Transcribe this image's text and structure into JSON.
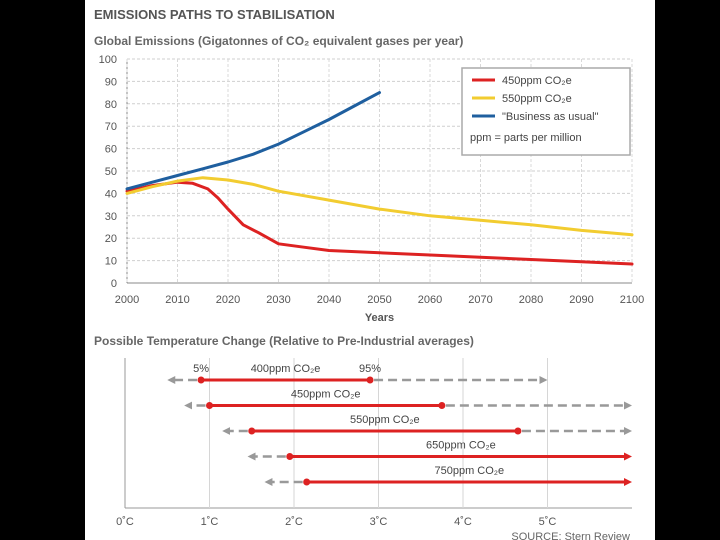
{
  "chart_data": [
    {
      "type": "line",
      "title": "EMISSIONS PATHS TO STABILISATION",
      "subtitle": "Global Emissions (Gigatonnes of CO₂ equivalent gases per year)",
      "xlabel": "Years",
      "ylabel": "",
      "xlim": [
        2000,
        2100
      ],
      "ylim": [
        0,
        100
      ],
      "xticks": [
        2000,
        2010,
        2020,
        2030,
        2040,
        2050,
        2060,
        2070,
        2080,
        2090,
        2100
      ],
      "yticks": [
        0,
        10,
        20,
        30,
        40,
        50,
        60,
        70,
        80,
        90,
        100
      ],
      "grid": true,
      "legend_position": "top-right",
      "legend_note": "ppm = parts per million",
      "series": [
        {
          "name": "450ppm CO₂e",
          "color": "#dd2222",
          "points": [
            [
              2000,
              41
            ],
            [
              2005,
              43.5
            ],
            [
              2010,
              45
            ],
            [
              2013,
              44.5
            ],
            [
              2016,
              42
            ],
            [
              2018,
              38
            ],
            [
              2020,
              33
            ],
            [
              2023,
              26
            ],
            [
              2026,
              22.5
            ],
            [
              2030,
              17.5
            ],
            [
              2035,
              16
            ],
            [
              2040,
              14.5
            ],
            [
              2050,
              13.5
            ],
            [
              2060,
              12.5
            ],
            [
              2070,
              11.5
            ],
            [
              2080,
              10.5
            ],
            [
              2090,
              9.5
            ],
            [
              2100,
              8.5
            ]
          ]
        },
        {
          "name": "550ppm CO₂e",
          "color": "#f2cc30",
          "points": [
            [
              2000,
              40
            ],
            [
              2005,
              43
            ],
            [
              2010,
              45.5
            ],
            [
              2015,
              47
            ],
            [
              2020,
              46
            ],
            [
              2025,
              44
            ],
            [
              2030,
              41
            ],
            [
              2040,
              37
            ],
            [
              2050,
              33
            ],
            [
              2060,
              30
            ],
            [
              2070,
              28
            ],
            [
              2080,
              26
            ],
            [
              2090,
              23.5
            ],
            [
              2100,
              21.5
            ]
          ]
        },
        {
          "name": "\"Business as usual\"",
          "color": "#1f5f9f",
          "points": [
            [
              2000,
              42
            ],
            [
              2005,
              45
            ],
            [
              2010,
              48
            ],
            [
              2015,
              51
            ],
            [
              2020,
              54
            ],
            [
              2025,
              57.5
            ],
            [
              2030,
              62
            ],
            [
              2035,
              67.5
            ],
            [
              2040,
              73
            ],
            [
              2045,
              79
            ],
            [
              2050,
              85
            ]
          ]
        }
      ]
    },
    {
      "type": "range",
      "title": "Possible Temperature Change (Relative to Pre-Industrial averages)",
      "xlim": [
        0,
        6
      ],
      "xticks": [
        "0˚C",
        "1˚C",
        "2˚C",
        "3˚C",
        "4˚C",
        "5˚C"
      ],
      "source": "SOURCE: Stern Review",
      "interval_labels": {
        "low": "5%",
        "high": "95%"
      },
      "ranges": [
        {
          "name": "400ppm CO₂e",
          "low": 0.9,
          "high": 2.9,
          "dash_low": 0.5,
          "dash_high": 5.0
        },
        {
          "name": "450ppm CO₂e",
          "low": 1.0,
          "high": 3.75,
          "dash_low": 0.7,
          "dash_high": 6.0
        },
        {
          "name": "550ppm CO₂e",
          "low": 1.5,
          "high": 4.65,
          "dash_low": 1.15,
          "dash_high": 6.0
        },
        {
          "name": "650ppm CO₂e",
          "low": 1.95,
          "high": 6.0,
          "dash_low": 1.45,
          "dash_high": 6.0
        },
        {
          "name": "750ppm CO₂e",
          "low": 2.15,
          "high": 6.0,
          "dash_low": 1.65,
          "dash_high": 6.0
        }
      ]
    }
  ]
}
